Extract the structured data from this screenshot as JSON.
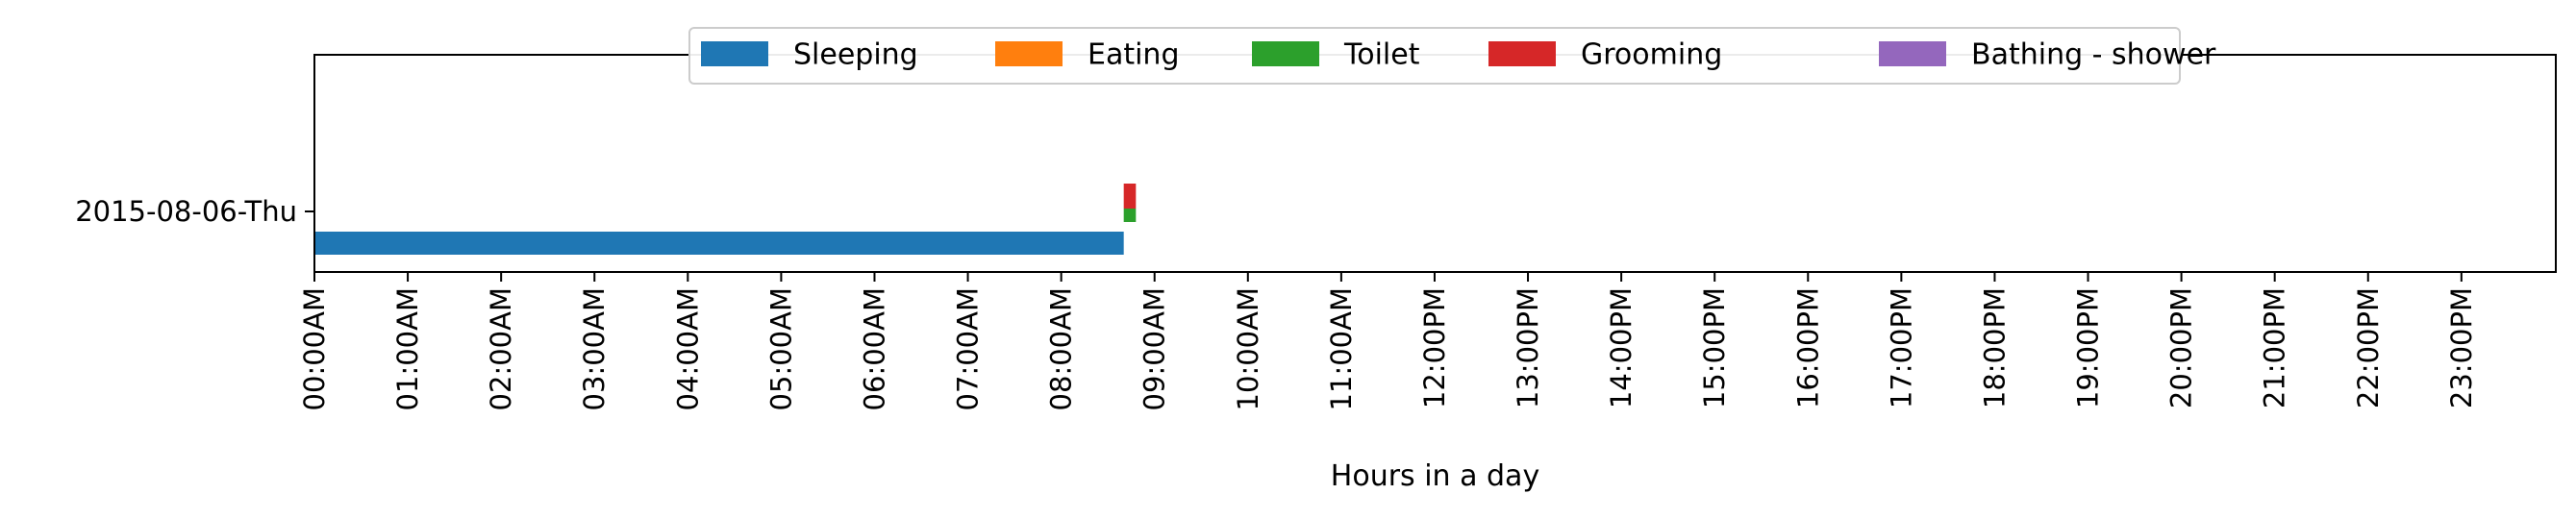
{
  "chart_data": {
    "type": "broken-barh",
    "title": "",
    "xlabel": "Hours in a day",
    "ylabel": "",
    "xlim": [
      0,
      24
    ],
    "x_ticks": [
      {
        "value": 0,
        "label": "00:00AM"
      },
      {
        "value": 1,
        "label": "01:00AM"
      },
      {
        "value": 2,
        "label": "02:00AM"
      },
      {
        "value": 3,
        "label": "03:00AM"
      },
      {
        "value": 4,
        "label": "04:00AM"
      },
      {
        "value": 5,
        "label": "05:00AM"
      },
      {
        "value": 6,
        "label": "06:00AM"
      },
      {
        "value": 7,
        "label": "07:00AM"
      },
      {
        "value": 8,
        "label": "08:00AM"
      },
      {
        "value": 9,
        "label": "09:00AM"
      },
      {
        "value": 10,
        "label": "10:00AM"
      },
      {
        "value": 11,
        "label": "11:00AM"
      },
      {
        "value": 12,
        "label": "12:00PM"
      },
      {
        "value": 13,
        "label": "13:00PM"
      },
      {
        "value": 14,
        "label": "14:00PM"
      },
      {
        "value": 15,
        "label": "15:00PM"
      },
      {
        "value": 16,
        "label": "16:00PM"
      },
      {
        "value": 17,
        "label": "17:00PM"
      },
      {
        "value": 18,
        "label": "18:00PM"
      },
      {
        "value": 19,
        "label": "19:00PM"
      },
      {
        "value": 20,
        "label": "20:00PM"
      },
      {
        "value": 21,
        "label": "21:00PM"
      },
      {
        "value": 22,
        "label": "22:00PM"
      },
      {
        "value": 23,
        "label": "23:00PM"
      }
    ],
    "y_categories": [
      "2015-08-06-Thu"
    ],
    "legend": {
      "position": "top-center",
      "entries": [
        {
          "name": "Sleeping",
          "color": "#1f77b4"
        },
        {
          "name": "Eating",
          "color": "#ff7f0e"
        },
        {
          "name": "Toilet",
          "color": "#2ca02c"
        },
        {
          "name": "Grooming",
          "color": "#d62728"
        },
        {
          "name": "Bathing - shower",
          "color": "#9467bd"
        }
      ]
    },
    "series": [
      {
        "name": "Sleeping",
        "day": "2015-08-06-Thu",
        "intervals": [
          {
            "start": 0.0,
            "end": 8.67
          }
        ]
      },
      {
        "name": "Toilet",
        "day": "2015-08-06-Thu",
        "intervals": [
          {
            "start": 8.67,
            "end": 8.8
          }
        ]
      },
      {
        "name": "Grooming",
        "day": "2015-08-06-Thu",
        "intervals": [
          {
            "start": 8.67,
            "end": 8.8
          }
        ]
      }
    ]
  }
}
